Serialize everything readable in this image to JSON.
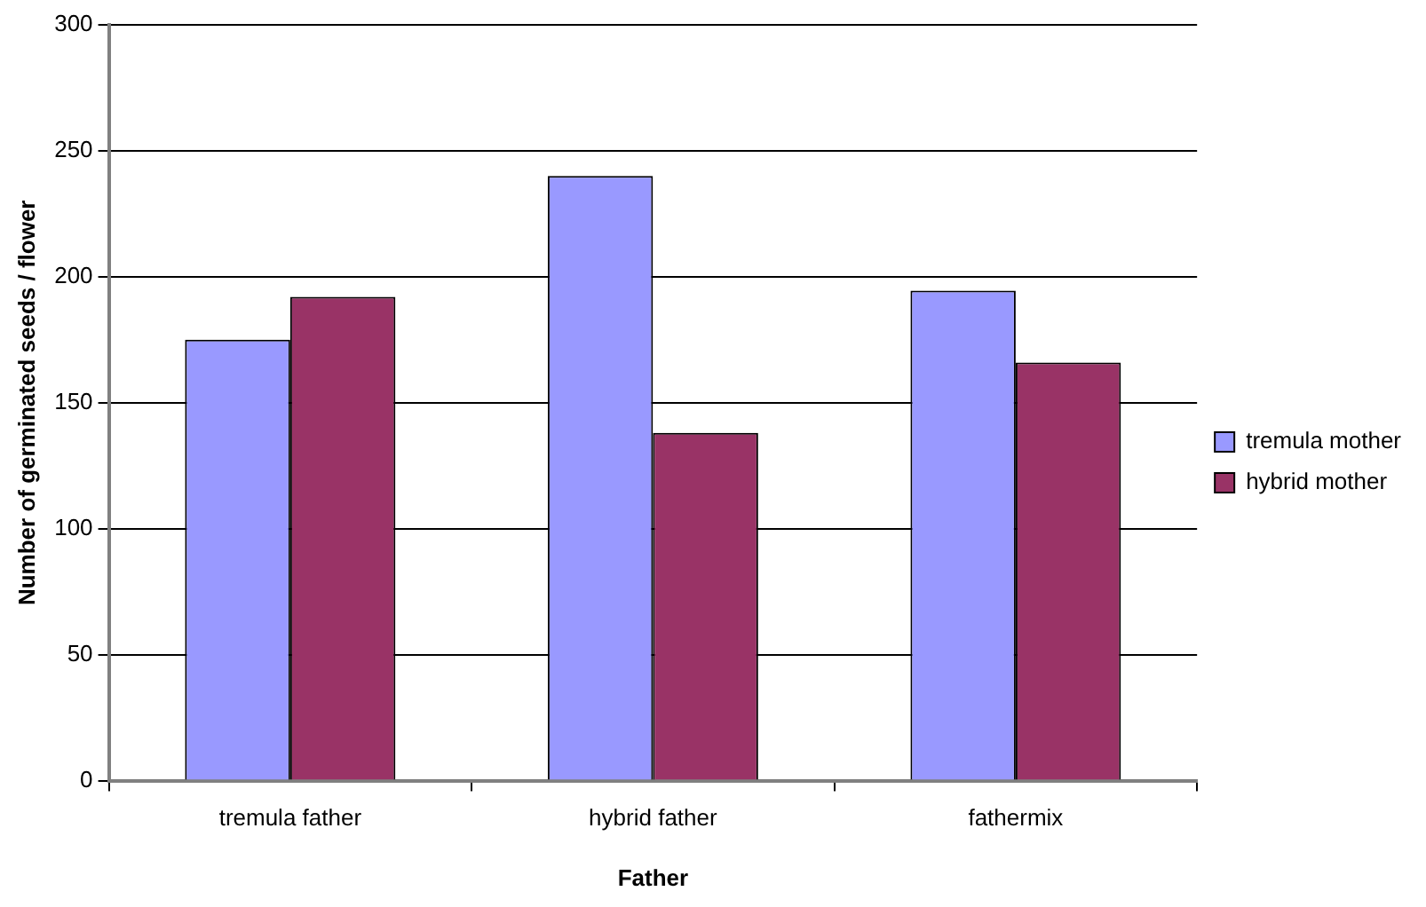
{
  "chart_data": {
    "type": "bar",
    "xlabel": "Father",
    "ylabel": "Number of germinated seeds / flower",
    "categories": [
      "tremula father",
      "hybrid father",
      "fathermix"
    ],
    "series": [
      {
        "name": "tremula mother",
        "color": "#9999ff",
        "values": [
          175,
          240,
          194.5
        ]
      },
      {
        "name": "hybrid mother",
        "color": "#993366",
        "values": [
          192,
          138,
          166
        ]
      }
    ],
    "ylim": [
      0,
      300
    ],
    "yticks": [
      0,
      50,
      100,
      150,
      200,
      250,
      300
    ],
    "grid": "y",
    "legend": "right"
  }
}
